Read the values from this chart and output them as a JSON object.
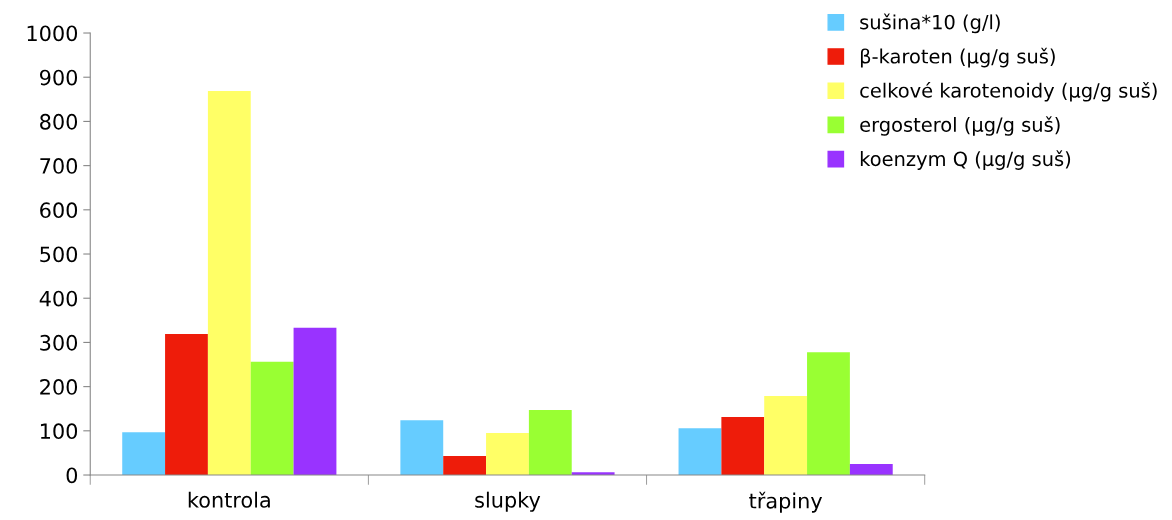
{
  "chart_data": {
    "type": "bar",
    "categories": [
      "kontrola",
      "slupky",
      "třapiny"
    ],
    "series": [
      {
        "name": "sušina*10 (g/l)",
        "color": "#66ccff",
        "values": [
          97,
          124,
          106
        ]
      },
      {
        "name": "β-karoten (µg/g suš)",
        "color": "#ee1c0a",
        "values": [
          319,
          43,
          131
        ]
      },
      {
        "name": "celkové karotenoidy (µg/g suš)",
        "color": "#ffff66",
        "values": [
          869,
          95,
          179
        ]
      },
      {
        "name": "ergosterol (µg/g suš)",
        "color": "#99ff33",
        "values": [
          256,
          147,
          278
        ]
      },
      {
        "name": "koenzym Q (µg/g suš)",
        "color": "#9933ff",
        "values": [
          333,
          6,
          25
        ]
      }
    ],
    "ylim": [
      0,
      1000
    ],
    "yticks": [
      0,
      100,
      200,
      300,
      400,
      500,
      600,
      700,
      800,
      900,
      1000
    ],
    "grid": false,
    "legend": "top right"
  }
}
